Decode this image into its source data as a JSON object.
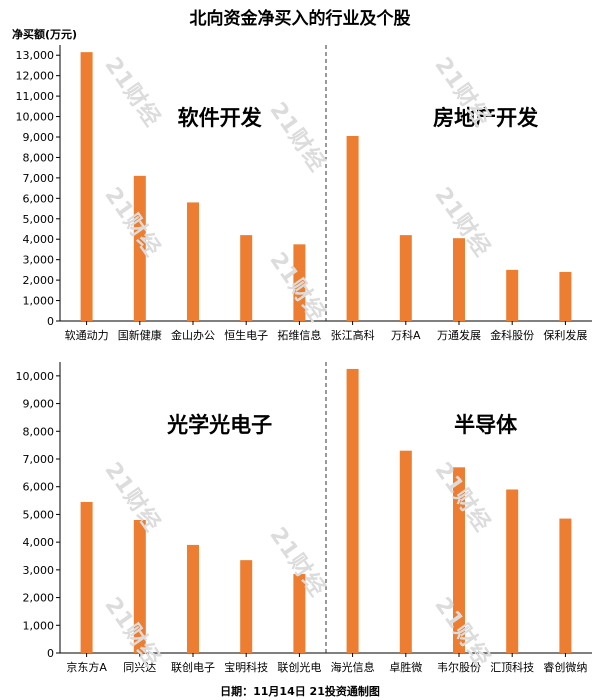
{
  "title": "北向资金净买入的行业及个股",
  "ylabel": "净买额(万元)",
  "footer": "日期：11月14日 21投资通制图",
  "watermark": "21财经",
  "bar_color": "#ED7D31",
  "chart_data": [
    {
      "type": "bar",
      "ylim": [
        0,
        13500
      ],
      "yticks": [
        0,
        1000,
        2000,
        3000,
        4000,
        5000,
        6000,
        7000,
        8000,
        9000,
        10000,
        11000,
        12000,
        13000
      ],
      "groups": [
        {
          "label": "软件开发",
          "categories": [
            "软通动力",
            "国新健康",
            "金山办公",
            "恒生电子",
            "拓维信息"
          ],
          "values": [
            13150,
            7100,
            5800,
            4200,
            3750
          ]
        },
        {
          "label": "房地产开发",
          "categories": [
            "张江高科",
            "万科A",
            "万通发展",
            "金科股份",
            "保利发展"
          ],
          "values": [
            9050,
            4200,
            4050,
            2500,
            2400
          ]
        }
      ]
    },
    {
      "type": "bar",
      "ylim": [
        0,
        10500
      ],
      "yticks": [
        0,
        1000,
        2000,
        3000,
        4000,
        5000,
        6000,
        7000,
        8000,
        9000,
        10000
      ],
      "groups": [
        {
          "label": "光学光电子",
          "categories": [
            "京东方A",
            "同兴达",
            "联创电子",
            "宝明科技",
            "联创光电"
          ],
          "values": [
            5450,
            4800,
            3900,
            3350,
            2850
          ]
        },
        {
          "label": "半导体",
          "categories": [
            "海光信息",
            "卓胜微",
            "韦尔股份",
            "汇顶科技",
            "睿创微纳"
          ],
          "values": [
            10250,
            7300,
            6700,
            5900,
            4850
          ]
        }
      ]
    }
  ]
}
